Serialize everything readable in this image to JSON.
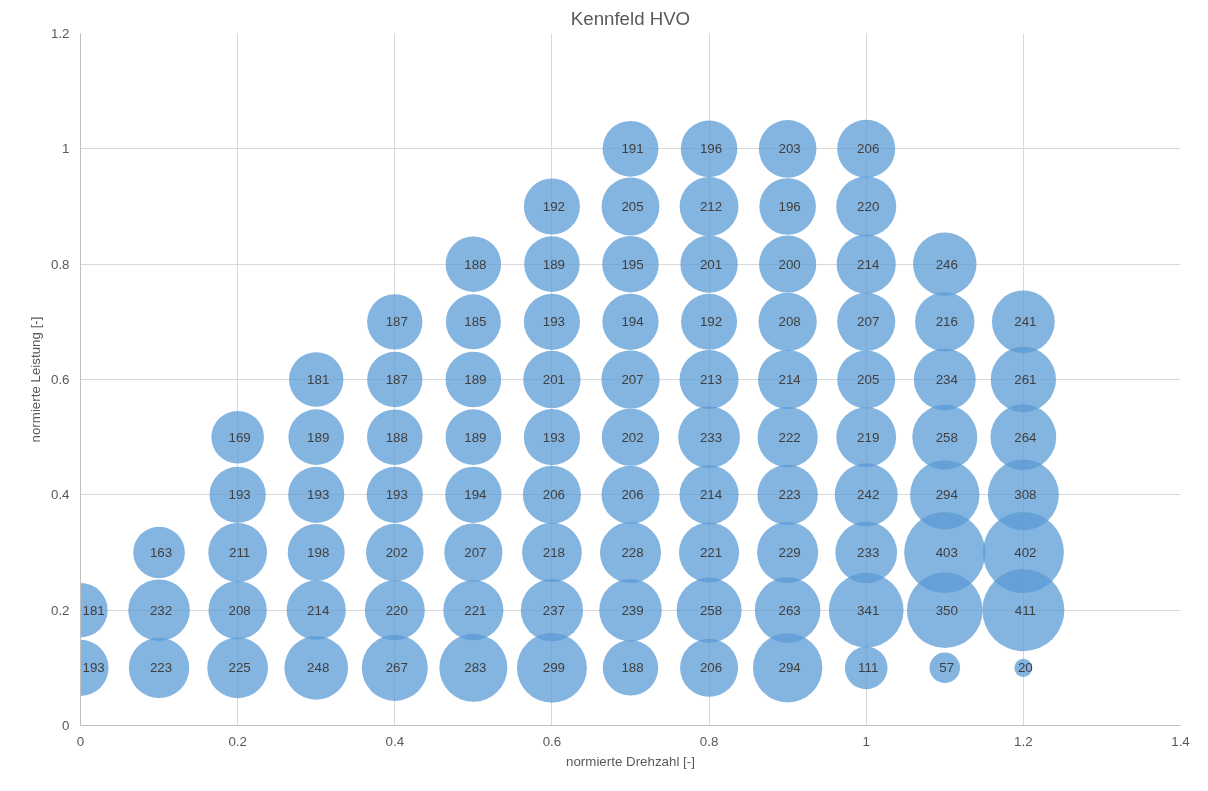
{
  "chart_data": {
    "type": "bubble",
    "title": "Kennfeld HVO",
    "xlabel": "normierte Drehzahl [-]",
    "ylabel": "normierte Leistung [-]",
    "xlim": [
      0,
      1.4
    ],
    "xticks": [
      0,
      0.2,
      0.4,
      0.6,
      0.8,
      1,
      1.2,
      1.4
    ],
    "ylim": [
      0,
      1.2
    ],
    "yticks": [
      0,
      0.2,
      0.4,
      0.6,
      0.8,
      1,
      1.2
    ],
    "grid": true,
    "series": [
      {
        "color": "#5b9bd5",
        "x": [
          0,
          0,
          0.1,
          0.1,
          0.1,
          0.2,
          0.2,
          0.2,
          0.2,
          0.2,
          0.3,
          0.3,
          0.3,
          0.3,
          0.3,
          0.3,
          0.4,
          0.4,
          0.4,
          0.4,
          0.4,
          0.4,
          0.4,
          0.5,
          0.5,
          0.5,
          0.5,
          0.5,
          0.5,
          0.5,
          0.5,
          0.6,
          0.6,
          0.6,
          0.6,
          0.6,
          0.6,
          0.6,
          0.6,
          0.6,
          0.7,
          0.7,
          0.7,
          0.7,
          0.7,
          0.7,
          0.7,
          0.7,
          0.7,
          0.7,
          0.8,
          0.8,
          0.8,
          0.8,
          0.8,
          0.8,
          0.8,
          0.8,
          0.8,
          0.8,
          0.9,
          0.9,
          0.9,
          0.9,
          0.9,
          0.9,
          0.9,
          0.9,
          0.9,
          0.9,
          1,
          1,
          1,
          1,
          1,
          1,
          1,
          1,
          1,
          1,
          1.1,
          1.1,
          1.1,
          1.1,
          1.1,
          1.1,
          1.1,
          1.1,
          1.2,
          1.2,
          1.2,
          1.2,
          1.2,
          1.2,
          1.2
        ],
        "values": [
          0.1,
          0.2,
          0.1,
          0.2,
          0.3,
          0.1,
          0.2,
          0.3,
          0.4,
          0.5,
          0.1,
          0.2,
          0.3,
          0.4,
          0.5,
          0.6,
          0.1,
          0.2,
          0.3,
          0.4,
          0.5,
          0.6,
          0.7,
          0.1,
          0.2,
          0.3,
          0.4,
          0.5,
          0.6,
          0.7,
          0.8,
          0.1,
          0.2,
          0.3,
          0.4,
          0.5,
          0.6,
          0.7,
          0.8,
          0.9,
          0.1,
          0.2,
          0.3,
          0.4,
          0.5,
          0.6,
          0.7,
          0.8,
          0.9,
          1,
          0.1,
          0.2,
          0.3,
          0.4,
          0.5,
          0.6,
          0.7,
          0.8,
          0.9,
          1,
          0.1,
          0.2,
          0.3,
          0.4,
          0.5,
          0.6,
          0.7,
          0.8,
          0.9,
          1,
          0.1,
          0.2,
          0.3,
          0.4,
          0.5,
          0.6,
          0.7,
          0.8,
          0.9,
          1,
          0.1,
          0.2,
          0.3,
          0.4,
          0.5,
          0.6,
          0.7,
          0.8,
          0.1,
          0.2,
          0.3,
          0.4,
          0.5,
          0.6,
          0.7
        ],
        "sizes": [
          193,
          181,
          223,
          232,
          163,
          225,
          208,
          211,
          193,
          169,
          248,
          214,
          198,
          193,
          189,
          181,
          267,
          220,
          202,
          193,
          188,
          187,
          187,
          283,
          221,
          207,
          194,
          189,
          189,
          185,
          188,
          299,
          237,
          218,
          206,
          193,
          201,
          193,
          189,
          192,
          188,
          239,
          228,
          206,
          202,
          207,
          194,
          195,
          205,
          191,
          206,
          258,
          221,
          214,
          233,
          213,
          192,
          201,
          212,
          196,
          294,
          263,
          229,
          223,
          222,
          214,
          208,
          200,
          196,
          203,
          111,
          341,
          233,
          242,
          219,
          205,
          207,
          214,
          220,
          206,
          57,
          350,
          403,
          294,
          258,
          234,
          216,
          246,
          20,
          411,
          402,
          308,
          264,
          261,
          241
        ],
        "value_labels": [
          "193",
          "181",
          "223",
          "232",
          "163",
          "225",
          "208",
          "211",
          "193",
          "169",
          "248",
          "214",
          "198",
          "193",
          "189",
          "181",
          "267",
          "220",
          "202",
          "193",
          "188",
          "187",
          "187",
          "283",
          "221",
          "207",
          "194",
          "189",
          "189",
          "185",
          "188",
          "299",
          "237",
          "218",
          "206",
          "193",
          "201",
          "193",
          "189",
          "192",
          "188",
          "239",
          "228",
          "206",
          "202",
          "207",
          "194",
          "195",
          "205",
          "191",
          "206",
          "258",
          "221",
          "214",
          "233",
          "213",
          "192",
          "201",
          "212",
          "196",
          "294",
          "263",
          "229",
          "223",
          "222",
          "214",
          "208",
          "200",
          "196",
          "203",
          "111",
          "341",
          "233",
          "242",
          "219",
          "205",
          "207",
          "214",
          "220",
          "206",
          "57",
          "350",
          "403",
          "294",
          "258",
          "234",
          "216",
          "246",
          "20",
          "411",
          "402",
          "308",
          "264",
          "261",
          "241"
        ]
      }
    ]
  }
}
